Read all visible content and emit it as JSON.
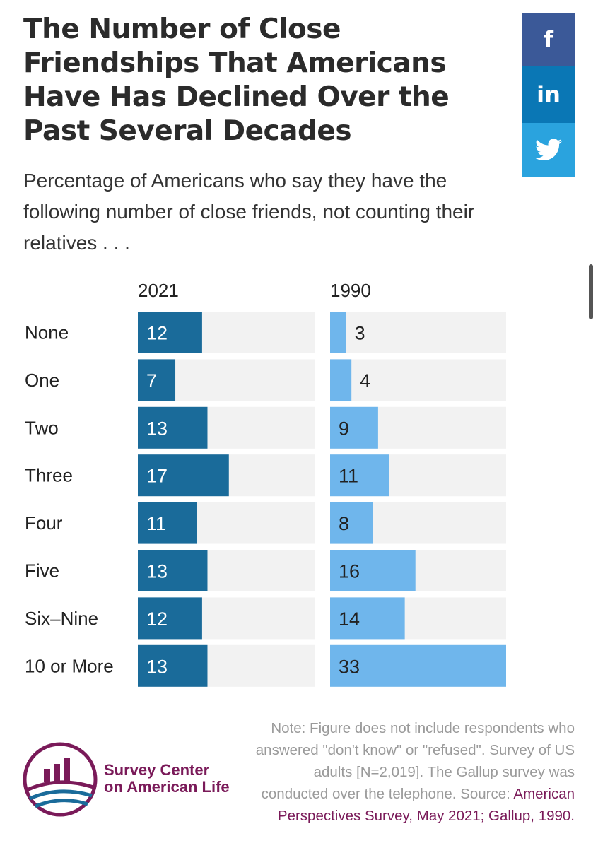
{
  "title": "The Number of Close Friendships That Americans Have Has Declined Over the Past Several Decades",
  "subtitle": "Percentage of Americans who say they have the following number of close friends, not counting their relatives . . .",
  "share": {
    "facebook": "f",
    "linkedin": "in",
    "twitter_icon": "twitter-bird"
  },
  "colors": {
    "dark_bar": "#1a6b9a",
    "light_bar": "#6fb6ec",
    "track": "#f2f2f2",
    "accent": "#7a1a59"
  },
  "chart_data": {
    "type": "bar",
    "orientation": "horizontal",
    "categories": [
      "None",
      "One",
      "Two",
      "Three",
      "Four",
      "Five",
      "Six–Nine",
      "10 or More"
    ],
    "series": [
      {
        "name": "2021",
        "values": [
          12,
          7,
          13,
          17,
          11,
          13,
          12,
          13
        ]
      },
      {
        "name": "1990",
        "values": [
          3,
          4,
          9,
          11,
          8,
          16,
          14,
          33
        ]
      }
    ],
    "xlim": [
      0,
      33
    ],
    "title": "The Number of Close Friendships That Americans Have Has Declined Over the Past Several Decades"
  },
  "note": {
    "text": "Note: Figure does not include respondents who answered \"don't know\" or \"refused\". Survey of US adults [N=2,019]. The Gallup survey was conducted over the telephone.",
    "source_label": "Source:",
    "source_text": "American Perspectives Survey, May 2021; Gallup, 1990."
  },
  "logo": {
    "line1": "Survey Center",
    "line2": "on American Life"
  }
}
